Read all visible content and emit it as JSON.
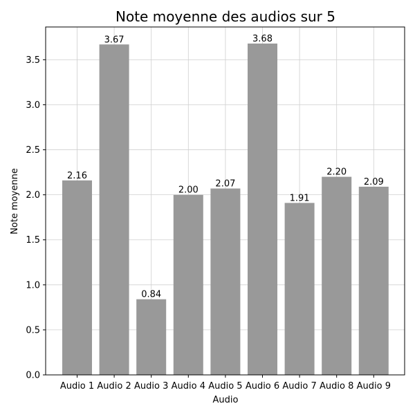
{
  "chart_data": {
    "type": "bar",
    "title": "Note moyenne des audios sur 5",
    "xlabel": "Audio",
    "ylabel": "Note moyenne",
    "categories": [
      "Audio 1",
      "Audio 2",
      "Audio 3",
      "Audio 4",
      "Audio 5",
      "Audio 6",
      "Audio 7",
      "Audio 8",
      "Audio 9"
    ],
    "values": [
      2.16,
      3.67,
      0.84,
      2.0,
      2.07,
      3.68,
      1.91,
      2.2,
      2.09
    ],
    "value_labels": [
      "2.16",
      "3.67",
      "0.84",
      "2.00",
      "2.07",
      "3.68",
      "1.91",
      "2.20",
      "2.09"
    ],
    "ylim": [
      0,
      3.864
    ],
    "yticks": [
      0.0,
      0.5,
      1.0,
      1.5,
      2.0,
      2.5,
      3.0,
      3.5
    ],
    "ytick_labels": [
      "0.0",
      "0.5",
      "1.0",
      "1.5",
      "2.0",
      "2.5",
      "3.0",
      "3.5"
    ],
    "grid": true,
    "bar_color": "#999999",
    "grid_color": "#cfcfcf"
  }
}
